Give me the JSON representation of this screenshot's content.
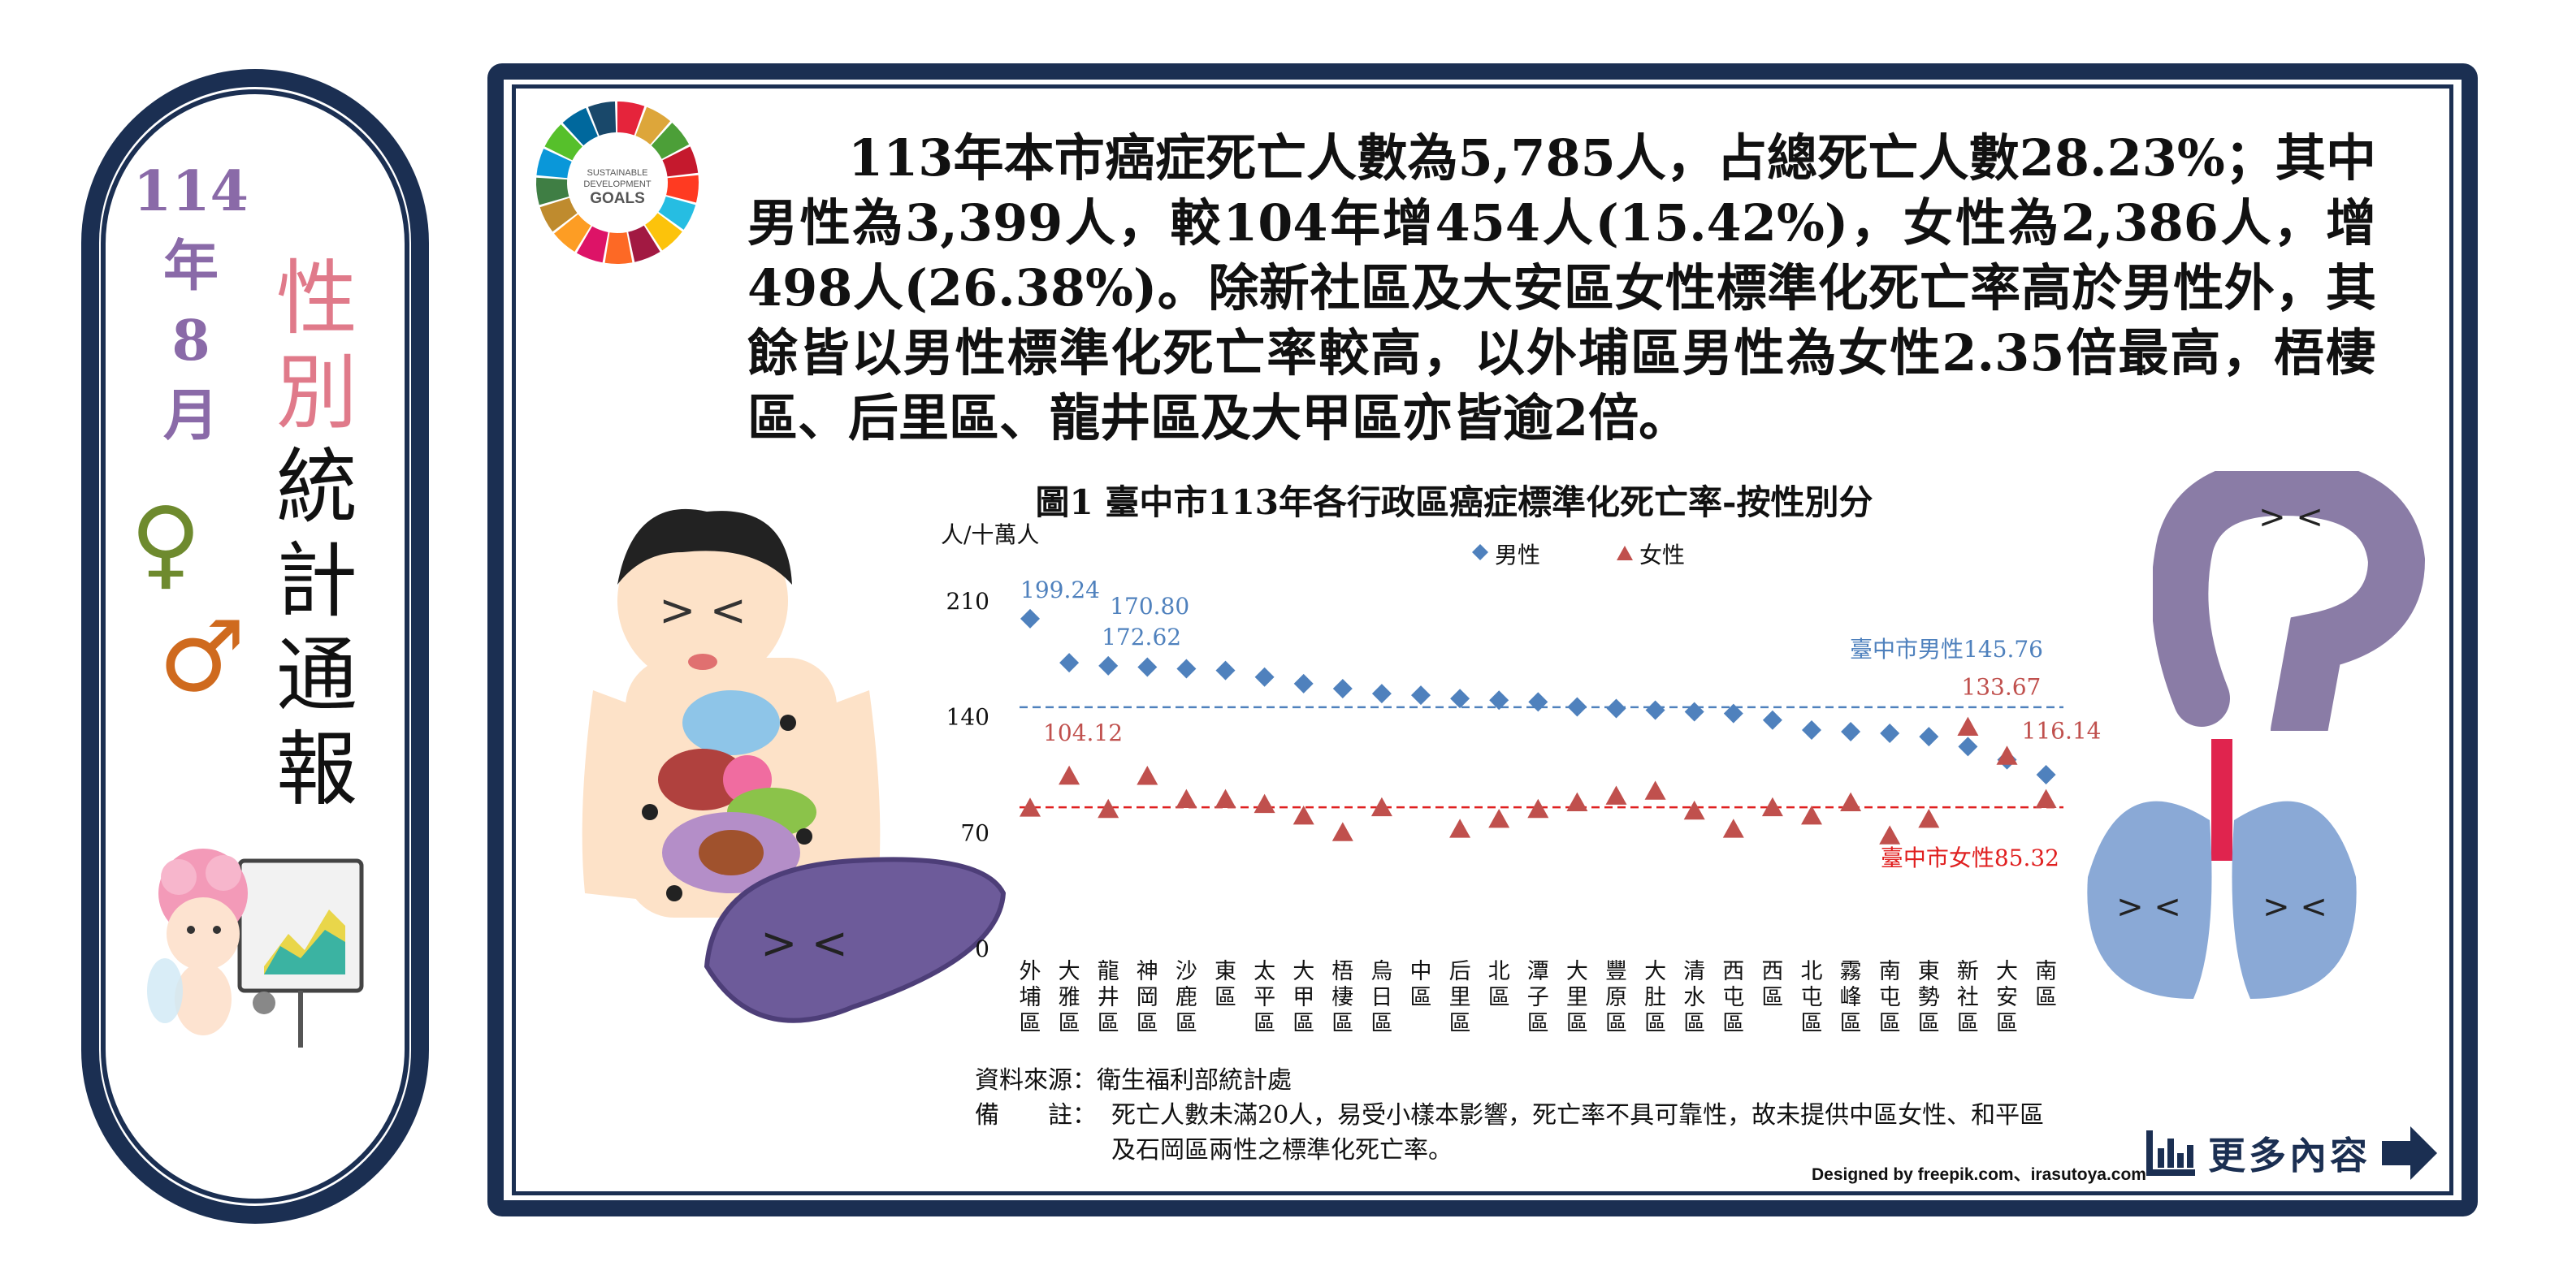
{
  "side": {
    "date_lines": [
      "114",
      "年",
      "8",
      "月"
    ],
    "title_colored": [
      "性",
      "別"
    ],
    "title_plain": [
      "統",
      "計",
      "通",
      "報"
    ],
    "female_symbol": "♀",
    "male_symbol": "♂",
    "colors": {
      "navy": "#1b2f52",
      "purple": "#8a6aa8",
      "pink": "#e07a8a",
      "green": "#6e8a2e",
      "orange": "#cf6a1e"
    }
  },
  "sdg_logo": {
    "text": [
      "SUSTAINABLE",
      "DEVELOPMENT",
      "GOALS"
    ],
    "icon": "sdg-wheel-icon"
  },
  "summary": "113年本市癌症死亡人數為5,785人，占總死亡人數28.23%；其中男性為3,399人，較104年增454人(15.42%)，女性為2,386人，增498人(26.38%)。除新社區及大安區女性標準化死亡率高於男性外，其餘皆以男性標準化死亡率較高，以外埔區男性為女性2.35倍最高，梧棲區、后里區、龍井區及大甲區亦皆逾2倍。",
  "chart_data": {
    "type": "scatter",
    "title": "圖1 臺中市113年各行政區癌症標準化死亡率-按性別分",
    "ylabel": "人/十萬人",
    "ylim": [
      0,
      210
    ],
    "yticks": [
      "0",
      "70",
      "140",
      "210"
    ],
    "categories": [
      "外埔區",
      "大雅區",
      "龍井區",
      "神岡區",
      "沙鹿區",
      "東區",
      "太平區",
      "大甲區",
      "梧棲區",
      "烏日區",
      "中區",
      "后里區",
      "北區",
      "潭子區",
      "大里區",
      "豐原區",
      "大肚區",
      "清水區",
      "西屯區",
      "西區",
      "北屯區",
      "霧峰區",
      "南屯區",
      "東勢區",
      "新社區",
      "大安區",
      "南區"
    ],
    "series": [
      {
        "name": "男性",
        "color": "#4f81bd",
        "marker": "diamond",
        "values": [
          199.24,
          172.62,
          170.8,
          170,
          169,
          168,
          164,
          160,
          157,
          154,
          153,
          151,
          150,
          149,
          146,
          145,
          144,
          143,
          142,
          138,
          132,
          131,
          130,
          128,
          122,
          114,
          105
        ]
      },
      {
        "name": "女性",
        "color": "#c0504d",
        "marker": "triangle",
        "values": [
          84.76,
          104.12,
          84,
          104,
          90,
          90,
          87,
          80,
          70,
          85,
          null,
          72,
          78,
          84,
          88,
          92,
          95,
          83,
          72,
          85,
          80,
          88,
          68,
          78,
          133.67,
          116.14,
          90
        ]
      }
    ],
    "reference_lines": [
      {
        "label": "臺中市男性145.76",
        "value": 145.76,
        "color": "#4f81bd"
      },
      {
        "label": "臺中市女性85.32",
        "value": 85.32,
        "color": "#e02020"
      }
    ],
    "value_labels": [
      {
        "text": "199.24",
        "series": 0,
        "index": 0
      },
      {
        "text": "172.62",
        "series": 0,
        "index": 1
      },
      {
        "text": "170.80",
        "series": 0,
        "index": 2
      },
      {
        "text": "104.12",
        "series": 1,
        "index": 1
      },
      {
        "text": "133.67",
        "series": 1,
        "index": 24
      },
      {
        "text": "116.14",
        "series": 1,
        "index": 25
      }
    ],
    "legend": [
      "男性",
      "女性"
    ],
    "legend_position": "top"
  },
  "notes": {
    "source": "資料來源：衛生福利部統計處",
    "remark_label": "備　　註：",
    "remark_line1": "死亡人數未滿20人，易受小樣本影響，死亡率不具可靠性，故未提供中區女性、和平區",
    "remark_line2": "及石岡區兩性之標準化死亡率。"
  },
  "credit": "Designed by freepik.com、irasutoya.com",
  "more_button": {
    "label": "更多內容",
    "icon": "bar-chart-icon",
    "arrow": "arrow-right-icon"
  }
}
